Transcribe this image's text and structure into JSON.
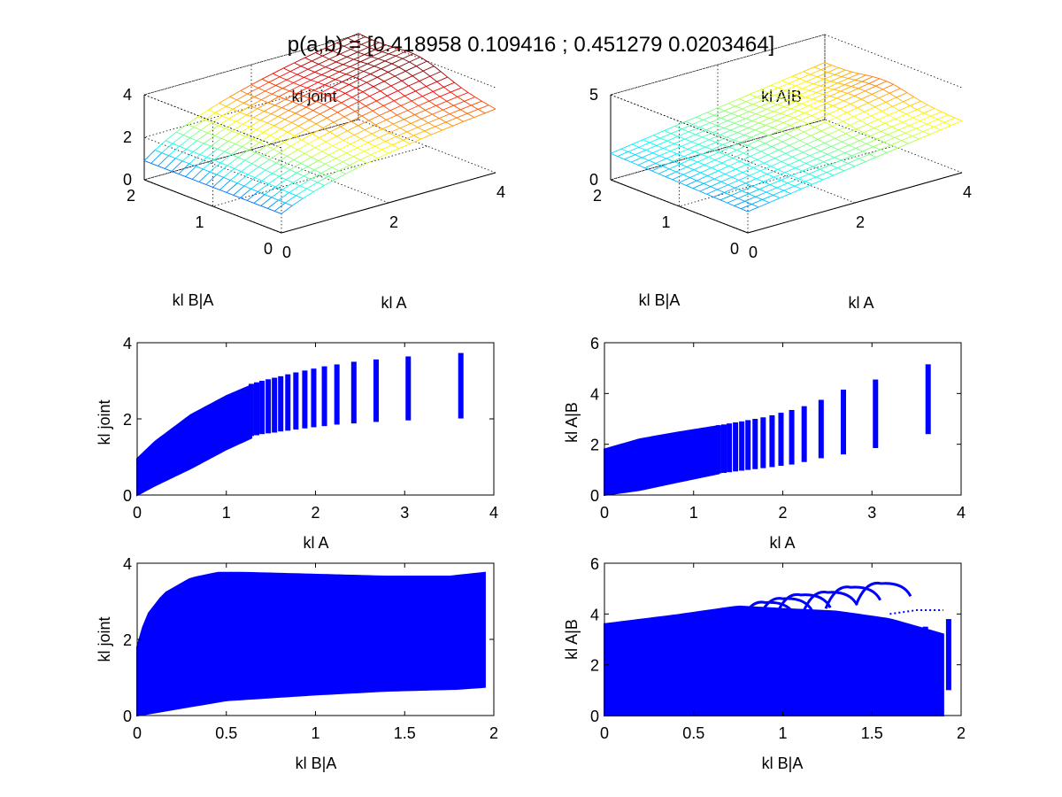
{
  "figure_title": "p(a,b) = [0.418958 0.109416 ; 0.451279 0.0203464]",
  "colors": {
    "scatter": "#0000ff",
    "axis": "#000000",
    "background": "#ffffff",
    "colormap": "jet"
  },
  "chart_data": [
    {
      "type": "surface",
      "title": "kl joint",
      "xlabel": "kl A",
      "ylabel": "kl B|A",
      "zlabel": "",
      "x_ticks": [
        "0",
        "2",
        "4"
      ],
      "y_ticks": [
        "0",
        "1",
        "2"
      ],
      "z_ticks": [
        "0",
        "2",
        "4"
      ],
      "xlim": [
        0,
        4
      ],
      "ylim": [
        0,
        2
      ],
      "zlim": [
        0,
        4
      ],
      "grid": "dotted box",
      "surface_description": "rises with kl A; peak about 3.8 near high kl A and mid kl B|A"
    },
    {
      "type": "surface",
      "title": "kl A|B",
      "xlabel": "kl A",
      "ylabel": "kl B|A",
      "zlabel": "",
      "x_ticks": [
        "0",
        "2",
        "4"
      ],
      "y_ticks": [
        "0",
        "1",
        "2"
      ],
      "z_ticks": [
        "0",
        "5"
      ],
      "xlim": [
        0,
        4
      ],
      "ylim": [
        0,
        2
      ],
      "zlim": [
        0,
        5
      ],
      "grid": "dotted box",
      "surface_description": "rises with kl A; peak about 5 near high kl A"
    },
    {
      "type": "scatter",
      "title": "",
      "xlabel": "kl A",
      "ylabel": "kl joint",
      "xlim": [
        0,
        4
      ],
      "ylim": [
        0,
        4
      ],
      "x_ticks": [
        "0",
        "1",
        "2",
        "3",
        "4"
      ],
      "y_ticks": [
        "0",
        "2",
        "4"
      ],
      "grid": false,
      "columns_x": [
        1.28,
        1.34,
        1.4,
        1.47,
        1.54,
        1.61,
        1.69,
        1.78,
        1.88,
        1.98,
        2.1,
        2.24,
        2.43,
        2.68,
        3.04,
        3.63
      ],
      "columns_min": [
        1.55,
        1.57,
        1.6,
        1.62,
        1.64,
        1.67,
        1.69,
        1.72,
        1.75,
        1.78,
        1.81,
        1.85,
        1.88,
        1.92,
        1.96,
        2.01
      ],
      "columns_max": [
        2.92,
        2.96,
        3.0,
        3.04,
        3.08,
        3.12,
        3.17,
        3.22,
        3.27,
        3.32,
        3.38,
        3.43,
        3.5,
        3.56,
        3.64,
        3.73
      ],
      "band_lower_points": [
        [
          0,
          0.0
        ],
        [
          0.2,
          0.25
        ],
        [
          0.6,
          0.7
        ],
        [
          1.0,
          1.2
        ],
        [
          1.28,
          1.5
        ]
      ],
      "band_upper_points": [
        [
          0,
          0.95
        ],
        [
          0.2,
          1.4
        ],
        [
          0.6,
          2.1
        ],
        [
          1.0,
          2.6
        ],
        [
          1.28,
          2.88
        ]
      ]
    },
    {
      "type": "scatter",
      "title": "",
      "xlabel": "kl A",
      "ylabel": "kl A|B",
      "xlim": [
        0,
        4
      ],
      "ylim": [
        0,
        6
      ],
      "x_ticks": [
        "0",
        "1",
        "2",
        "3",
        "4"
      ],
      "y_ticks": [
        "0",
        "2",
        "4",
        "6"
      ],
      "grid": false,
      "columns_x": [
        1.28,
        1.34,
        1.4,
        1.47,
        1.54,
        1.61,
        1.69,
        1.78,
        1.88,
        1.98,
        2.1,
        2.24,
        2.43,
        2.68,
        3.04,
        3.63
      ],
      "columns_min": [
        0.85,
        0.87,
        0.9,
        0.93,
        0.96,
        0.99,
        1.02,
        1.06,
        1.1,
        1.15,
        1.2,
        1.3,
        1.45,
        1.6,
        1.85,
        2.4
      ],
      "columns_max": [
        2.75,
        2.78,
        2.82,
        2.86,
        2.9,
        2.95,
        3.0,
        3.06,
        3.14,
        3.24,
        3.35,
        3.5,
        3.75,
        4.15,
        4.55,
        5.15
      ],
      "band_lower_points": [
        [
          0,
          0.0
        ],
        [
          0.4,
          0.2
        ],
        [
          0.8,
          0.5
        ],
        [
          1.28,
          0.85
        ]
      ],
      "band_upper_points": [
        [
          0,
          1.8
        ],
        [
          0.4,
          2.2
        ],
        [
          0.8,
          2.45
        ],
        [
          1.28,
          2.72
        ]
      ]
    },
    {
      "type": "scatter",
      "title": "",
      "xlabel": "kl B|A",
      "ylabel": "kl joint",
      "xlim": [
        0,
        2
      ],
      "ylim": [
        0,
        4
      ],
      "x_ticks": [
        "0",
        "0.5",
        "1",
        "1.5",
        "2"
      ],
      "y_ticks": [
        "0",
        "2",
        "4"
      ],
      "grid": false,
      "band_upper_points": [
        [
          0,
          1.8
        ],
        [
          0.05,
          2.6
        ],
        [
          0.15,
          3.2
        ],
        [
          0.3,
          3.6
        ],
        [
          0.45,
          3.75
        ],
        [
          0.6,
          3.75
        ],
        [
          1.0,
          3.7
        ],
        [
          1.4,
          3.65
        ],
        [
          1.75,
          3.65
        ],
        [
          1.95,
          3.75
        ]
      ],
      "band_lower_points": [
        [
          0,
          0.0
        ],
        [
          0.5,
          0.4
        ],
        [
          1.0,
          0.55
        ],
        [
          1.4,
          0.65
        ],
        [
          1.8,
          0.7
        ],
        [
          1.95,
          0.75
        ]
      ],
      "columns_x": [
        1.7,
        1.72,
        1.77,
        1.8,
        1.85,
        1.93
      ],
      "columns_min": [
        0.85,
        0.8,
        0.9,
        0.9,
        0.85,
        0.8
      ],
      "columns_max": [
        3.2,
        3.3,
        3.4,
        3.5,
        3.7,
        3.75
      ]
    },
    {
      "type": "scatter",
      "title": "",
      "xlabel": "kl B|A",
      "ylabel": "kl A|B",
      "xlim": [
        0,
        2
      ],
      "ylim": [
        0,
        6
      ],
      "x_ticks": [
        "0",
        "0.5",
        "1",
        "1.5",
        "2"
      ],
      "y_ticks": [
        "0",
        "2",
        "4",
        "6"
      ],
      "grid": false,
      "band_upper_points": [
        [
          0,
          3.6
        ],
        [
          0.4,
          3.95
        ],
        [
          0.75,
          4.3
        ],
        [
          1.0,
          4.2
        ],
        [
          1.3,
          4.1
        ],
        [
          1.6,
          3.8
        ],
        [
          1.9,
          3.2
        ]
      ],
      "band_lower_points": [
        [
          0,
          0.0
        ],
        [
          1.9,
          0.0
        ]
      ],
      "loop_peaks": [
        [
          0.9,
          4.45
        ],
        [
          1.0,
          4.6
        ],
        [
          1.1,
          4.75
        ],
        [
          1.25,
          4.85
        ],
        [
          1.38,
          5.05
        ],
        [
          1.55,
          5.2
        ]
      ],
      "columns_x": [
        1.3,
        1.45,
        1.6,
        1.68,
        1.75,
        1.8,
        1.93
      ],
      "columns_min": [
        0.0,
        0.0,
        0.0,
        0.0,
        0.1,
        0.0,
        1.0
      ],
      "columns_max": [
        2.0,
        2.2,
        2.8,
        3.1,
        3.3,
        3.5,
        3.8
      ]
    }
  ]
}
